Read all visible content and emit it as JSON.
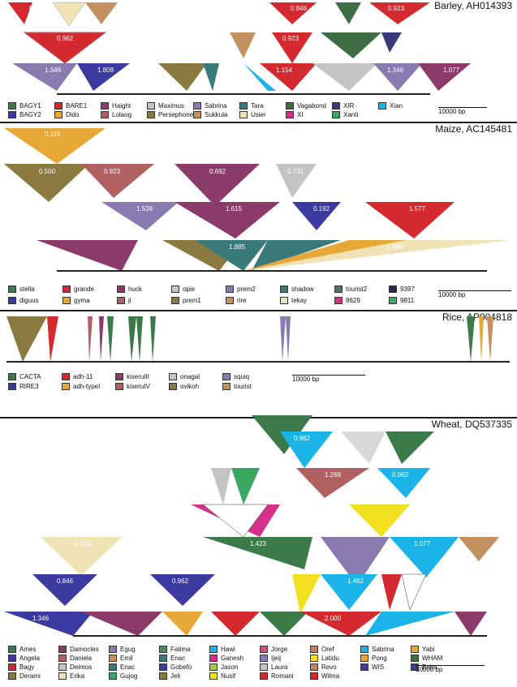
{
  "panels": {
    "barley": {
      "title": "Barley, AH014393",
      "values": [
        "0.923",
        "0.846",
        "0.923",
        "0.962",
        "0.923",
        "1.346",
        "1.808",
        "1.154",
        "1.346",
        "1.077"
      ],
      "legend": [
        {
          "label": "BAGY1",
          "color": "#3c7a4a"
        },
        {
          "label": "BARE1",
          "color": "#d42a2f"
        },
        {
          "label": "Haight",
          "color": "#8c3a6a"
        },
        {
          "label": "Maximus",
          "color": "#c4c4c4"
        },
        {
          "label": "Sabrina",
          "color": "#8a7ab0"
        },
        {
          "label": "Tara",
          "color": "#3a7a7a"
        },
        {
          "label": "Vagabond",
          "color": "#3f6e45"
        },
        {
          "label": "XIR",
          "color": "#3a3a7a"
        },
        {
          "label": "Xian",
          "color": "#1ab4e8"
        },
        {
          "label": "BAGY2",
          "color": "#3a3aa0"
        },
        {
          "label": "Dido",
          "color": "#e8a838"
        },
        {
          "label": "Lolaog",
          "color": "#b06060"
        },
        {
          "label": "Persephone",
          "color": "#8a7a40"
        },
        {
          "label": "Sukkula",
          "color": "#c49060"
        },
        {
          "label": "Usier",
          "color": "#efe2b4"
        },
        {
          "label": "XI",
          "color": "#d6308a"
        },
        {
          "label": "Xanti",
          "color": "#3aa860"
        }
      ],
      "scale": "10000 bp"
    },
    "maize": {
      "title": "Maize, AC145481",
      "values": [
        "0.115",
        "0.500",
        "0.923",
        "0.692",
        "0.731",
        "1.538",
        "1.615",
        "0.192",
        "1.577",
        "1.885",
        "1.885"
      ],
      "legend": [
        {
          "label": "stella",
          "color": "#3c7a4a"
        },
        {
          "label": "grande",
          "color": "#d42a2f"
        },
        {
          "label": "huck",
          "color": "#8c3a6a"
        },
        {
          "label": "opie",
          "color": "#c4c4c4"
        },
        {
          "label": "prem2",
          "color": "#8a7ab0"
        },
        {
          "label": "shadow",
          "color": "#3a7a7a"
        },
        {
          "label": "tourist2",
          "color": "#4f7a55"
        },
        {
          "label": "9397",
          "color": "#2a2a5a"
        },
        {
          "label": "diguus",
          "color": "#3a3aa0"
        },
        {
          "label": "gyma",
          "color": "#e8a838"
        },
        {
          "label": "ji",
          "color": "#b06060"
        },
        {
          "label": "prem1",
          "color": "#8a7a40"
        },
        {
          "label": "rire",
          "color": "#c49060"
        },
        {
          "label": "tekay",
          "color": "#efe2b4"
        },
        {
          "label": "8629",
          "color": "#d6308a"
        },
        {
          "label": "9811",
          "color": "#3aa860"
        }
      ],
      "scale": "10000 bp"
    },
    "rice": {
      "title": "Rice, AP004818",
      "legend": [
        {
          "label": "CACTA",
          "color": "#3c7a4a"
        },
        {
          "label": "adh-11",
          "color": "#d42a2f"
        },
        {
          "label": "kiseruIII",
          "color": "#8c3a6a"
        },
        {
          "label": "onagal",
          "color": "#c4c4c4"
        },
        {
          "label": "squiq",
          "color": "#8a7ab0"
        },
        {
          "label": "RIRE3",
          "color": "#3a3aa0"
        },
        {
          "label": "adh-typeI",
          "color": "#e8a838"
        },
        {
          "label": "kiseruIV",
          "color": "#b06060"
        },
        {
          "label": "ovikoh",
          "color": "#8a7a40"
        },
        {
          "label": "tourist",
          "color": "#c49060"
        }
      ],
      "scale": "10000 bp"
    },
    "wheat": {
      "title": "Wheat, DQ537335",
      "values": [
        "0.962",
        "1.269",
        "0.962",
        "1.000",
        "1.423",
        "1.077",
        "1.462",
        "0.846",
        "0.962",
        "1.346",
        "2.000"
      ],
      "legend": [
        {
          "label": "Ames",
          "color": "#3c7a4a"
        },
        {
          "label": "Damocles",
          "color": "#8c3a6a"
        },
        {
          "label": "Egug",
          "color": "#8a7ab0"
        },
        {
          "label": "Fatima",
          "color": "#4f8a5f"
        },
        {
          "label": "Hawi",
          "color": "#1ab4e8"
        },
        {
          "label": "Jorge",
          "color": "#d6507a"
        },
        {
          "label": "Oref",
          "color": "#c48060"
        },
        {
          "label": "Sabrina",
          "color": "#1ab4e8"
        },
        {
          "label": "Yabi",
          "color": "#e8a838"
        },
        {
          "label": "Angela",
          "color": "#3a3aa0"
        },
        {
          "label": "Daniela",
          "color": "#b06060"
        },
        {
          "label": "Emil",
          "color": "#c49060"
        },
        {
          "label": "Enac",
          "color": "#3a7a7a"
        },
        {
          "label": "Ganesh",
          "color": "#d6308a"
        },
        {
          "label": "Ijeij",
          "color": "#8a7ab0"
        },
        {
          "label": "Latidu",
          "color": "#f0e020"
        },
        {
          "label": "Pong",
          "color": "#e8a838"
        },
        {
          "label": "WHAM",
          "color": "#3f6e45"
        },
        {
          "label": "Bagy",
          "color": "#d42a2f"
        },
        {
          "label": "Deimos",
          "color": "#c4c4c4"
        },
        {
          "label": "Enac",
          "color": "#3a7a7a"
        },
        {
          "label": "Gobefo",
          "color": "#3a3aa0"
        },
        {
          "label": "Jason",
          "color": "#a0c840"
        },
        {
          "label": "Laura",
          "color": "#c4c4c4"
        },
        {
          "label": "Revo",
          "color": "#c48060"
        },
        {
          "label": "WIS",
          "color": "#3a3aa0"
        },
        {
          "label": "Boba",
          "color": "#3a3aa0"
        },
        {
          "label": "Derami",
          "color": "#8a7a40"
        },
        {
          "label": "Erika",
          "color": "#efe2b4"
        },
        {
          "label": "Gujog",
          "color": "#3aa860"
        },
        {
          "label": "Jeli",
          "color": "#8a7a40"
        },
        {
          "label": "Nusif",
          "color": "#f0e020"
        },
        {
          "label": "Romani",
          "color": "#d42a2f"
        },
        {
          "label": "Wilma",
          "color": "#d42a2f"
        }
      ],
      "scale": "10000 bp"
    }
  }
}
